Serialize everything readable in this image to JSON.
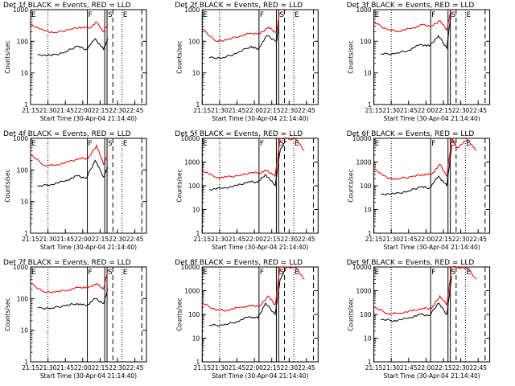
{
  "figure": {
    "panels": [
      {
        "title": "Det 1f BLACK = Events, RED = LLD",
        "red_rise": 0.55,
        "red_spike": 0
      },
      {
        "title": "Det 2f BLACK = Events, RED = LLD",
        "red_rise": 0.55,
        "red_spike": 0
      },
      {
        "title": "Det 3f BLACK = Events, RED = LLD",
        "red_rise": 0.55,
        "red_spike": 0
      },
      {
        "title": "Det 4f BLACK = Events, RED = LLD",
        "red_rise": 0.5,
        "red_spike": 0
      },
      {
        "title": "Det 5f BLACK = Events, RED = LLD",
        "red_rise": 0.55,
        "red_spike": 0
      },
      {
        "title": "Det 6f BLACK = Events, RED = LLD",
        "red_rise": 0.55,
        "red_spike": 0
      },
      {
        "title": "Det 7f BLACK = Events, RED = LLD",
        "red_rise": 0.45,
        "red_spike": 0
      },
      {
        "title": "Det 8f BLACK = Events, RED = LLD",
        "red_rise": 0.55,
        "red_spike": 1
      },
      {
        "title": "Det 9f BLACK = Events, RED = LLD",
        "red_rise": 0.55,
        "red_spike": 0
      }
    ],
    "xlabel": "Start Time (30-Apr-04 21:14:40)",
    "ylabel": "Counts/sec",
    "x_tick_labels": [
      "21:15",
      "21:30",
      "21:45",
      "22:00",
      "22:15",
      "22:30",
      "22:45"
    ],
    "markers": {
      "E": "E",
      "F": "F",
      "S": "S"
    }
  },
  "chart_data": {
    "type": "line",
    "layout": "3x3 grid of detector panels",
    "xlabel": "Start Time (30-Apr-04 21:14:40)",
    "ylabel": "Counts/sec",
    "x_range": [
      "21:15",
      "22:55"
    ],
    "y_scale": "log",
    "series_colors": {
      "events": "#000000",
      "lld": "#e00000"
    },
    "x_ticks": [
      "21:15",
      "21:30",
      "21:45",
      "22:00",
      "22:15",
      "22:30",
      "22:45"
    ],
    "vertical_markers": [
      {
        "label": "E",
        "time": "21:15",
        "style": "dotted"
      },
      {
        "label": "",
        "time": "21:30",
        "style": "dotted"
      },
      {
        "label": "F",
        "time": "22:04",
        "style": "solid"
      },
      {
        "label": "",
        "time": "22:19",
        "style": "solid"
      },
      {
        "label": "S",
        "time": "22:21",
        "style": "solid"
      },
      {
        "label": "",
        "time": "22:26",
        "style": "dashed"
      },
      {
        "label": "E",
        "time": "22:34",
        "style": "dotted"
      },
      {
        "label": "",
        "time": "22:51",
        "style": "dashed"
      }
    ],
    "panels": [
      {
        "name": "Det 1f",
        "y_ticks": [
          "1",
          "10",
          "100",
          "1000"
        ],
        "ylim": [
          1,
          1000
        ],
        "events": [
          [
            21.35,
            38
          ],
          [
            21.55,
            35
          ],
          [
            21.75,
            46
          ],
          [
            21.92,
            70
          ],
          [
            22.05,
            55
          ],
          [
            22.18,
            120
          ],
          [
            22.3,
            55
          ],
          [
            22.36,
            120
          ]
        ],
        "lld": [
          [
            21.25,
            350
          ],
          [
            21.45,
            210
          ],
          [
            21.6,
            190
          ],
          [
            21.8,
            230
          ],
          [
            21.95,
            280
          ],
          [
            22.1,
            260
          ],
          [
            22.2,
            400
          ],
          [
            22.3,
            200
          ],
          [
            22.36,
            350
          ]
        ]
      },
      {
        "name": "Det 2f",
        "y_ticks": [
          "1",
          "10",
          "100",
          "1000"
        ],
        "ylim": [
          1,
          1000
        ],
        "events": [
          [
            21.35,
            30
          ],
          [
            21.55,
            30
          ],
          [
            21.75,
            42
          ],
          [
            21.95,
            70
          ],
          [
            22.05,
            55
          ],
          [
            22.18,
            150
          ],
          [
            22.32,
            100
          ],
          [
            22.35,
            300
          ]
        ],
        "lld": [
          [
            21.25,
            250
          ],
          [
            21.45,
            100
          ],
          [
            21.6,
            110
          ],
          [
            21.8,
            150
          ],
          [
            21.95,
            180
          ],
          [
            22.08,
            170
          ],
          [
            22.2,
            280
          ],
          [
            22.32,
            180
          ],
          [
            22.36,
            800
          ]
        ]
      },
      {
        "name": "Det 3f",
        "y_ticks": [
          "1",
          "10",
          "100",
          "1000"
        ],
        "ylim": [
          1,
          1000
        ],
        "events": [
          [
            21.35,
            40
          ],
          [
            21.55,
            40
          ],
          [
            21.75,
            52
          ],
          [
            21.92,
            80
          ],
          [
            22.05,
            70
          ],
          [
            22.18,
            150
          ],
          [
            22.3,
            60
          ],
          [
            22.36,
            800
          ]
        ],
        "lld": [
          [
            21.25,
            400
          ],
          [
            21.45,
            230
          ],
          [
            21.6,
            210
          ],
          [
            21.8,
            260
          ],
          [
            21.95,
            330
          ],
          [
            22.08,
            300
          ],
          [
            22.2,
            450
          ],
          [
            22.3,
            230
          ],
          [
            22.36,
            1000
          ]
        ]
      },
      {
        "name": "Det 4f",
        "y_ticks": [
          "1",
          "10",
          "100",
          "1000"
        ],
        "ylim": [
          1,
          1000
        ],
        "events": [
          [
            21.35,
            30
          ],
          [
            21.55,
            35
          ],
          [
            21.75,
            45
          ],
          [
            21.92,
            65
          ],
          [
            22.05,
            55
          ],
          [
            22.18,
            200
          ],
          [
            22.3,
            60
          ],
          [
            22.36,
            120
          ]
        ],
        "lld": [
          [
            21.25,
            300
          ],
          [
            21.45,
            140
          ],
          [
            21.6,
            140
          ],
          [
            21.8,
            180
          ],
          [
            21.95,
            230
          ],
          [
            22.08,
            230
          ],
          [
            22.2,
            600
          ],
          [
            22.3,
            150
          ],
          [
            22.36,
            300
          ]
        ]
      },
      {
        "name": "Det 5f",
        "y_ticks": [
          "1",
          "10",
          "100",
          "1000",
          "10000"
        ],
        "ylim": [
          1,
          10000
        ],
        "events": [
          [
            21.35,
            70
          ],
          [
            21.55,
            80
          ],
          [
            21.75,
            100
          ],
          [
            21.92,
            150
          ],
          [
            22.05,
            140
          ],
          [
            22.16,
            300
          ],
          [
            22.3,
            100
          ],
          [
            22.37,
            3000
          ],
          [
            22.45,
            8000
          ]
        ],
        "lld": [
          [
            21.25,
            450
          ],
          [
            21.45,
            220
          ],
          [
            21.6,
            230
          ],
          [
            21.8,
            280
          ],
          [
            21.95,
            350
          ],
          [
            22.08,
            350
          ],
          [
            22.18,
            450
          ],
          [
            22.3,
            250
          ],
          [
            22.37,
            10000
          ],
          [
            22.6,
            9000
          ],
          [
            22.72,
            3000
          ]
        ]
      },
      {
        "name": "Det 6f",
        "y_ticks": [
          "1",
          "10",
          "100",
          "1000",
          "10000"
        ],
        "ylim": [
          1,
          10000
        ],
        "events": [
          [
            21.35,
            45
          ],
          [
            21.55,
            45
          ],
          [
            21.75,
            60
          ],
          [
            21.92,
            90
          ],
          [
            22.05,
            80
          ],
          [
            22.18,
            250
          ],
          [
            22.3,
            100
          ],
          [
            22.37,
            5000
          ]
        ],
        "lld": [
          [
            21.25,
            550
          ],
          [
            21.45,
            200
          ],
          [
            21.6,
            200
          ],
          [
            21.8,
            240
          ],
          [
            21.95,
            300
          ],
          [
            22.08,
            300
          ],
          [
            22.2,
            800
          ],
          [
            22.3,
            250
          ],
          [
            22.37,
            10000
          ],
          [
            22.45,
            4000
          ],
          [
            22.6,
            9000
          ],
          [
            22.72,
            3000
          ]
        ]
      },
      {
        "name": "Det 7f",
        "y_ticks": [
          "1",
          "10",
          "100",
          "1000"
        ],
        "ylim": [
          1,
          1000
        ],
        "events": [
          [
            21.35,
            50
          ],
          [
            21.55,
            50
          ],
          [
            21.75,
            60
          ],
          [
            21.92,
            70
          ],
          [
            22.05,
            60
          ],
          [
            22.18,
            100
          ],
          [
            22.3,
            70
          ],
          [
            22.36,
            200
          ]
        ],
        "lld": [
          [
            21.25,
            300
          ],
          [
            21.45,
            160
          ],
          [
            21.6,
            160
          ],
          [
            21.8,
            190
          ],
          [
            21.95,
            230
          ],
          [
            22.08,
            220
          ],
          [
            22.2,
            300
          ],
          [
            22.3,
            200
          ],
          [
            22.36,
            800
          ]
        ]
      },
      {
        "name": "Det 8f",
        "y_ticks": [
          "1",
          "10",
          "100",
          "1000",
          "10000"
        ],
        "ylim": [
          1,
          10000
        ],
        "events": [
          [
            21.35,
            35
          ],
          [
            21.55,
            35
          ],
          [
            21.75,
            50
          ],
          [
            21.92,
            80
          ],
          [
            22.05,
            70
          ],
          [
            22.16,
            300
          ],
          [
            22.3,
            100
          ],
          [
            22.37,
            3000
          ],
          [
            22.45,
            8000
          ]
        ],
        "lld": [
          [
            21.25,
            300
          ],
          [
            21.45,
            150
          ],
          [
            21.6,
            150
          ],
          [
            21.8,
            200
          ],
          [
            21.95,
            230
          ],
          [
            22.08,
            230
          ],
          [
            22.2,
            600
          ],
          [
            22.3,
            250
          ],
          [
            22.37,
            10000
          ],
          [
            22.6,
            9000
          ],
          [
            22.72,
            3000
          ]
        ]
      },
      {
        "name": "Det 9f",
        "y_ticks": [
          "1",
          "10",
          "100",
          "1000",
          "10000"
        ],
        "ylim": [
          1,
          10000
        ],
        "events": [
          [
            21.35,
            60
          ],
          [
            21.55,
            55
          ],
          [
            21.75,
            70
          ],
          [
            21.92,
            100
          ],
          [
            22.05,
            90
          ],
          [
            22.18,
            300
          ],
          [
            22.3,
            100
          ],
          [
            22.37,
            4000
          ]
        ],
        "lld": [
          [
            21.25,
            200
          ],
          [
            21.45,
            110
          ],
          [
            21.6,
            110
          ],
          [
            21.8,
            140
          ],
          [
            21.95,
            180
          ],
          [
            22.08,
            180
          ],
          [
            22.2,
            600
          ],
          [
            22.3,
            250
          ],
          [
            22.37,
            10000
          ],
          [
            22.6,
            9000
          ],
          [
            22.72,
            3000
          ]
        ]
      }
    ]
  }
}
